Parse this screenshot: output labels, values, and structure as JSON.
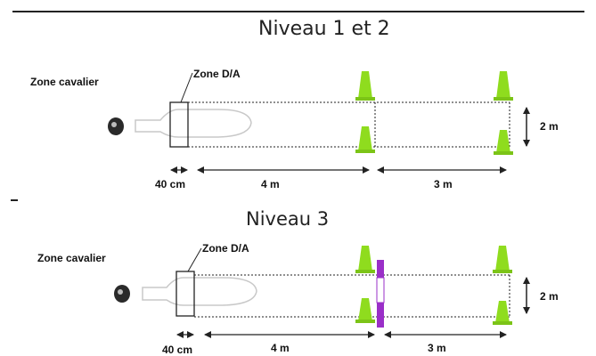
{
  "top": {
    "title": "Niveau 1 et 2",
    "rider_zone_label": "Zone cavalier",
    "da_zone_label": "Zone D/A",
    "width_label": "2 m",
    "dim_labels": [
      "40 cm",
      "4 m",
      "3 m"
    ]
  },
  "bottom": {
    "title": "Niveau 3",
    "rider_zone_label": "Zone cavalier",
    "da_zone_label": "Zone D/A",
    "width_label": "2 m",
    "dim_labels": [
      "40 cm",
      "4 m",
      "3 m"
    ]
  },
  "colors": {
    "cone": "#8fdc1e",
    "pole": "#9a2fc8",
    "line": "#222222"
  }
}
